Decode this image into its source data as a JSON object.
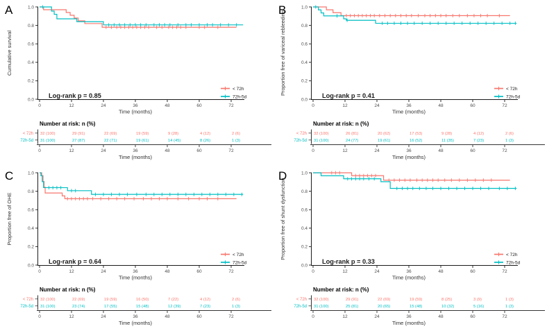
{
  "figure": {
    "background": "#ffffff",
    "layout": {
      "rows": 2,
      "cols": 2
    },
    "colors": {
      "group1": "#F8766D",
      "group2": "#00BFC4",
      "axis_line": "#1a1a1a",
      "axis_tick_text": "#4d4d4d",
      "axis_title_text": "#303030",
      "annotation_text": "#1a1a1a"
    },
    "legend": {
      "position": "inside-bottom-right",
      "entries": [
        {
          "label": "< 72h",
          "color": "#F8766D"
        },
        {
          "label": "72h-5d",
          "color": "#00BFC4"
        }
      ]
    }
  },
  "chart_data": [
    {
      "panel_label": "A",
      "type": "line",
      "subtype": "kaplan-meier-step",
      "xlabel": "Time (months)",
      "ylabel": "Cumulative survival",
      "annotation": "Log-rank p = 0.85",
      "xlim": [
        0,
        78
      ],
      "ylim": [
        0,
        1
      ],
      "x_ticks": [
        0,
        12,
        24,
        36,
        48,
        60,
        72
      ],
      "y_tick_labels": [
        "0.0",
        "0.2",
        "0.4",
        "0.6",
        "0.8",
        "1.0"
      ],
      "grid": false,
      "series": [
        {
          "name": "< 72h",
          "color": "#F8766D",
          "end_time": 74,
          "steps": [
            [
              0,
              1.0
            ],
            [
              1.5,
              0.97
            ],
            [
              10,
              0.94
            ],
            [
              11.5,
              0.91
            ],
            [
              13,
              0.88
            ],
            [
              14.5,
              0.85
            ],
            [
              17,
              0.82
            ],
            [
              23.5,
              0.78
            ]
          ],
          "censor_times": [
            25,
            27,
            29,
            30.5,
            32,
            33.5,
            35,
            36.5,
            38,
            39.5,
            41,
            44,
            46,
            48.5,
            50,
            51.5,
            53,
            55,
            60,
            62,
            67
          ]
        },
        {
          "name": "72h-5d",
          "color": "#00BFC4",
          "end_time": 76.5,
          "steps": [
            [
              0,
              1.0
            ],
            [
              4.5,
              0.955
            ],
            [
              5.5,
              0.92
            ],
            [
              6.5,
              0.871
            ],
            [
              14,
              0.84
            ],
            [
              24,
              0.806
            ]
          ],
          "censor_times": [
            1.2,
            26,
            28,
            30,
            32,
            34,
            36,
            38,
            40,
            43,
            45,
            47,
            49,
            52,
            55,
            57,
            60,
            63,
            65,
            68,
            71,
            74
          ]
        }
      ],
      "risk_table": {
        "header": "Number at risk: n (%)",
        "time_points": [
          0,
          12,
          24,
          36,
          48,
          60,
          72
        ],
        "xlabel": "Time (months)",
        "rows": [
          {
            "label": "< 72h",
            "color": "#F8766D",
            "values": [
              "32 (100)",
              "29 (91)",
              "22 (69)",
              "19 (59)",
              "9 (28)",
              "4 (12)",
              "2 (6)"
            ]
          },
          {
            "label": "72h-5d",
            "color": "#00BFC4",
            "values": [
              "31 (100)",
              "27 (87)",
              "22 (71)",
              "19 (61)",
              "14 (45)",
              "8 (26)",
              "1 (3)"
            ]
          }
        ]
      }
    },
    {
      "panel_label": "B",
      "type": "line",
      "subtype": "kaplan-meier-step",
      "xlabel": "Time (months)",
      "ylabel": "Proportion free of variceal rebleeding",
      "annotation": "Log-rank p = 0.41",
      "xlim": [
        0,
        78
      ],
      "ylim": [
        0,
        1
      ],
      "x_ticks": [
        0,
        12,
        24,
        36,
        48,
        60,
        72
      ],
      "y_tick_labels": [
        "0.0",
        "0.2",
        "0.4",
        "0.6",
        "0.8",
        "1.0"
      ],
      "grid": false,
      "series": [
        {
          "name": "< 72h",
          "color": "#F8766D",
          "end_time": 74,
          "steps": [
            [
              0,
              1.0
            ],
            [
              5,
              0.969
            ],
            [
              7.5,
              0.938
            ],
            [
              10.5,
              0.906
            ]
          ],
          "censor_times": [
            12.5,
            14,
            15.5,
            17,
            18.5,
            20,
            21.5,
            23,
            25,
            27,
            29,
            31,
            33,
            35,
            37,
            39.5,
            42,
            44,
            46,
            48,
            50,
            52.5,
            55,
            58,
            60.5,
            63,
            65.5,
            70
          ]
        },
        {
          "name": "72h-5d",
          "color": "#00BFC4",
          "end_time": 76.5,
          "steps": [
            [
              0,
              1.0
            ],
            [
              2,
              0.968
            ],
            [
              3,
              0.935
            ],
            [
              4,
              0.903
            ],
            [
              11.5,
              0.871
            ],
            [
              12.5,
              0.855
            ],
            [
              23.5,
              0.823
            ]
          ],
          "censor_times": [
            1,
            9,
            12.8,
            26,
            28,
            30.5,
            33,
            35.5,
            38,
            41,
            44,
            47,
            50,
            53,
            56,
            59,
            62,
            65,
            68,
            71,
            74,
            76
          ]
        }
      ],
      "risk_table": {
        "header": "Number at risk: n (%)",
        "time_points": [
          0,
          12,
          24,
          36,
          48,
          60,
          72
        ],
        "xlabel": "Time (months)",
        "rows": [
          {
            "label": "< 72h",
            "color": "#F8766D",
            "values": [
              "32 (100)",
              "26 (81)",
              "20 (62)",
              "17 (53)",
              "9 (28)",
              "4 (12)",
              "2 (6)"
            ]
          },
          {
            "label": "72h-5d",
            "color": "#00BFC4",
            "values": [
              "31 (100)",
              "24 (77)",
              "19 (61)",
              "16 (52)",
              "11 (35)",
              "7 (23)",
              "1 (3)"
            ]
          }
        ]
      }
    },
    {
      "panel_label": "C",
      "type": "line",
      "subtype": "kaplan-meier-step",
      "xlabel": "Time (months)",
      "ylabel": "Proportion free of OHE",
      "annotation": "Log-rank p = 0.64",
      "xlim": [
        0,
        78
      ],
      "ylim": [
        0,
        1
      ],
      "x_ticks": [
        0,
        12,
        24,
        36,
        48,
        60,
        72
      ],
      "y_tick_labels": [
        "0.0",
        "0.2",
        "0.4",
        "0.6",
        "0.8",
        "1.0"
      ],
      "grid": false,
      "series": [
        {
          "name": "< 72h",
          "color": "#F8766D",
          "end_time": 74,
          "steps": [
            [
              0,
              1.0
            ],
            [
              0.8,
              0.969
            ],
            [
              1.3,
              0.906
            ],
            [
              1.7,
              0.844
            ],
            [
              2.1,
              0.781
            ],
            [
              8.5,
              0.75
            ],
            [
              9.5,
              0.719
            ]
          ],
          "censor_times": [
            10.5,
            12,
            13.5,
            15,
            16.5,
            18,
            20,
            23,
            26,
            29,
            32,
            35.5,
            39,
            42,
            45,
            48,
            52,
            56,
            60,
            63,
            67
          ]
        },
        {
          "name": "72h-5d",
          "color": "#00BFC4",
          "end_time": 76.5,
          "steps": [
            [
              0,
              1.0
            ],
            [
              0.5,
              0.968
            ],
            [
              1.0,
              0.903
            ],
            [
              1.5,
              0.839
            ],
            [
              10.5,
              0.806
            ],
            [
              19.5,
              0.766
            ]
          ],
          "censor_times": [
            3.5,
            5,
            6.5,
            8,
            12,
            13.5,
            21,
            24,
            27,
            30,
            33,
            36.5,
            40,
            43,
            46,
            49,
            52,
            55,
            58,
            61,
            64,
            67,
            70,
            73,
            76
          ]
        }
      ],
      "risk_table": {
        "header": "Number at risk: n (%)",
        "time_points": [
          0,
          12,
          24,
          36,
          48,
          60,
          72
        ],
        "xlabel": "Time (months)",
        "rows": [
          {
            "label": "< 72h",
            "color": "#F8766D",
            "values": [
              "32 (100)",
              "22 (69)",
              "19 (59)",
              "16 (50)",
              "7 (22)",
              "4 (12)",
              "2 (6)"
            ]
          },
          {
            "label": "72h-5d",
            "color": "#00BFC4",
            "values": [
              "31 (100)",
              "23 (74)",
              "17 (55)",
              "15 (48)",
              "12 (39)",
              "7 (23)",
              "1 (3)"
            ]
          }
        ]
      }
    },
    {
      "panel_label": "D",
      "type": "line",
      "subtype": "kaplan-meier-step",
      "xlabel": "Time (months)",
      "ylabel": "Proportion free of shunt dysfunction",
      "annotation": "Log-rank p = 0.33",
      "xlim": [
        0,
        78
      ],
      "ylim": [
        0,
        1
      ],
      "x_ticks": [
        0,
        12,
        24,
        36,
        48,
        60,
        72
      ],
      "y_tick_labels": [
        "0.0",
        "0.2",
        "0.4",
        "0.6",
        "0.8",
        "1.0"
      ],
      "grid": false,
      "series": [
        {
          "name": "< 72h",
          "color": "#F8766D",
          "end_time": 74,
          "steps": [
            [
              0,
              1.0
            ],
            [
              14.5,
              0.969
            ],
            [
              26.5,
              0.92
            ]
          ],
          "censor_times": [
            7,
            8.5,
            10,
            16,
            17.5,
            19,
            20.5,
            22,
            23.5,
            28.5,
            30.5,
            32.5,
            34.5,
            36.5,
            39,
            41,
            43,
            45,
            47,
            49.5,
            52,
            55,
            58,
            61,
            64,
            67
          ]
        },
        {
          "name": "72h-5d",
          "color": "#00BFC4",
          "end_time": 76.5,
          "steps": [
            [
              0,
              1.0
            ],
            [
              3,
              0.968
            ],
            [
              11.5,
              0.935
            ],
            [
              25.5,
              0.903
            ],
            [
              29,
              0.831
            ]
          ],
          "censor_times": [
            13,
            14.5,
            16,
            17.5,
            19,
            21,
            23,
            31.5,
            33.5,
            35.5,
            37.5,
            40,
            42.5,
            45,
            48,
            51,
            54,
            57,
            60,
            63,
            66,
            70,
            73,
            76
          ]
        }
      ],
      "risk_table": {
        "header": "Number at risk: n (%)",
        "time_points": [
          0,
          12,
          24,
          36,
          48,
          60,
          72
        ],
        "xlabel": "Time (months)",
        "rows": [
          {
            "label": "< 72h",
            "color": "#F8766D",
            "values": [
              "32 (100)",
              "29 (91)",
              "22 (69)",
              "19 (59)",
              "8 (25)",
              "3 (9)",
              "1 (3)"
            ]
          },
          {
            "label": "72h-5d",
            "color": "#00BFC4",
            "values": [
              "31 (100)",
              "25 (81)",
              "20 (65)",
              "15 (48)",
              "10 (32)",
              "5 (16)",
              "1 (3)"
            ]
          }
        ]
      }
    }
  ]
}
